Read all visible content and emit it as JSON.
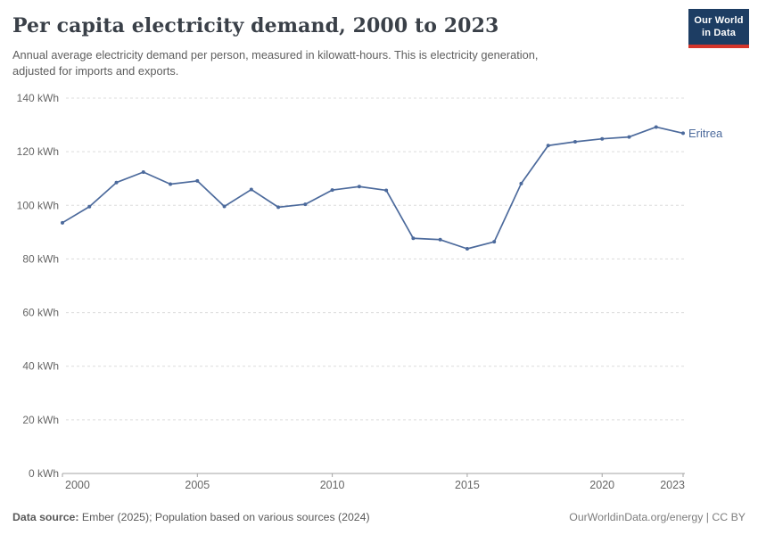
{
  "header": {
    "title": "Per capita electricity demand, 2000 to 2023",
    "subtitle_line1": "Annual average electricity demand per person, measured in kilowatt-hours. This is electricity generation,",
    "subtitle_line2": "adjusted for imports and exports.",
    "logo": {
      "line1": "Our World",
      "line2": "in Data",
      "bg_color": "#1d3d63",
      "accent_color": "#d4352b"
    }
  },
  "chart_data": {
    "type": "line",
    "title": "Per capita electricity demand, 2000 to 2023",
    "xlabel": "",
    "ylabel": "",
    "unit": "kWh",
    "ylim": [
      0,
      140
    ],
    "xlim": [
      2000,
      2023
    ],
    "grid": "horizontal-dashed",
    "legend_position": "end-of-line",
    "yticks": {
      "values": [
        0,
        20,
        40,
        60,
        80,
        100,
        120,
        140
      ],
      "labels": [
        "0 kWh",
        "20 kWh",
        "40 kWh",
        "60 kWh",
        "80 kWh",
        "100 kWh",
        "120 kWh",
        "140 kWh"
      ]
    },
    "xticks": {
      "values": [
        2000,
        2005,
        2010,
        2015,
        2020,
        2023
      ],
      "labels": [
        "2000",
        "2005",
        "2010",
        "2015",
        "2020",
        "2023"
      ]
    },
    "x": [
      2000,
      2001,
      2002,
      2003,
      2004,
      2005,
      2006,
      2007,
      2008,
      2009,
      2010,
      2011,
      2012,
      2013,
      2014,
      2015,
      2016,
      2017,
      2018,
      2019,
      2020,
      2021,
      2022,
      2023
    ],
    "series": [
      {
        "name": "Eritrea",
        "color": "#4C6A9C",
        "values": [
          93.5,
          99.5,
          108.5,
          112.4,
          107.9,
          109.1,
          99.6,
          105.9,
          99.3,
          100.4,
          105.7,
          107.0,
          105.6,
          87.7,
          87.2,
          83.8,
          86.4,
          108.1,
          122.3,
          123.7,
          124.8,
          125.5,
          129.2,
          126.9
        ]
      }
    ],
    "colors": {
      "gridline": "#dcdcdc",
      "axis": "#a3a3a3",
      "tick_text": "#666666"
    }
  },
  "footer": {
    "source_label": "Data source:",
    "source_text": " Ember (2025); Population based on various sources (2024)",
    "link_text": "OurWorldinData.org/energy | CC BY"
  }
}
